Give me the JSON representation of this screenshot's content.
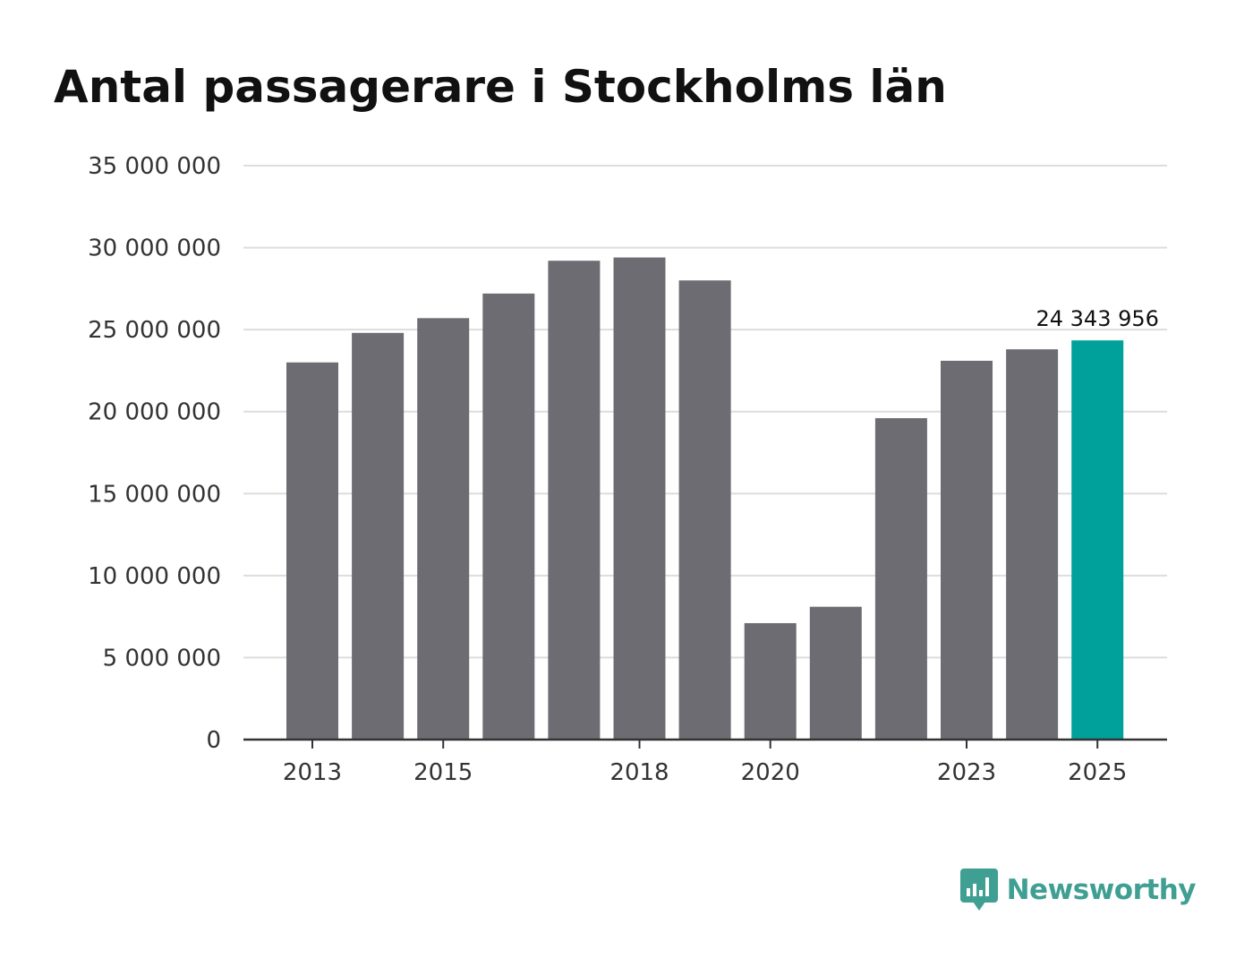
{
  "title": "Antal passagerare i Stockholms län",
  "brand": {
    "name": "Newsworthy",
    "icon": "newsworthy-logo-icon",
    "color": "#3f9f92"
  },
  "colors": {
    "bar": "#6d6c72",
    "highlight": "#00a19a",
    "grid": "#dddddd",
    "axis": "#333333"
  },
  "chart_data": {
    "type": "bar",
    "title": "Antal passagerare i Stockholms län",
    "xlabel": "",
    "ylabel": "",
    "categories": [
      "2013",
      "2014",
      "2015",
      "2016",
      "2017",
      "2018",
      "2019",
      "2020",
      "2021",
      "2022",
      "2023",
      "2024",
      "2025"
    ],
    "values": [
      23000000,
      24800000,
      25700000,
      27200000,
      29200000,
      29400000,
      28000000,
      7100000,
      8100000,
      19600000,
      23100000,
      23800000,
      24343956
    ],
    "ylim": [
      0,
      35000000
    ],
    "yticks": [
      0,
      5000000,
      10000000,
      15000000,
      20000000,
      25000000,
      30000000,
      35000000
    ],
    "ytick_labels": [
      "0",
      "5 000 000",
      "10 000 000",
      "15 000 000",
      "20 000 000",
      "25 000 000",
      "30 000 000",
      "35 000 000"
    ],
    "xtick_labels": [
      "2013",
      "2015",
      "2018",
      "2020",
      "2023",
      "2025"
    ],
    "highlight_category": "2025",
    "annotation": {
      "category": "2025",
      "text": "24 343 956"
    },
    "grid": true,
    "legend": "none"
  }
}
